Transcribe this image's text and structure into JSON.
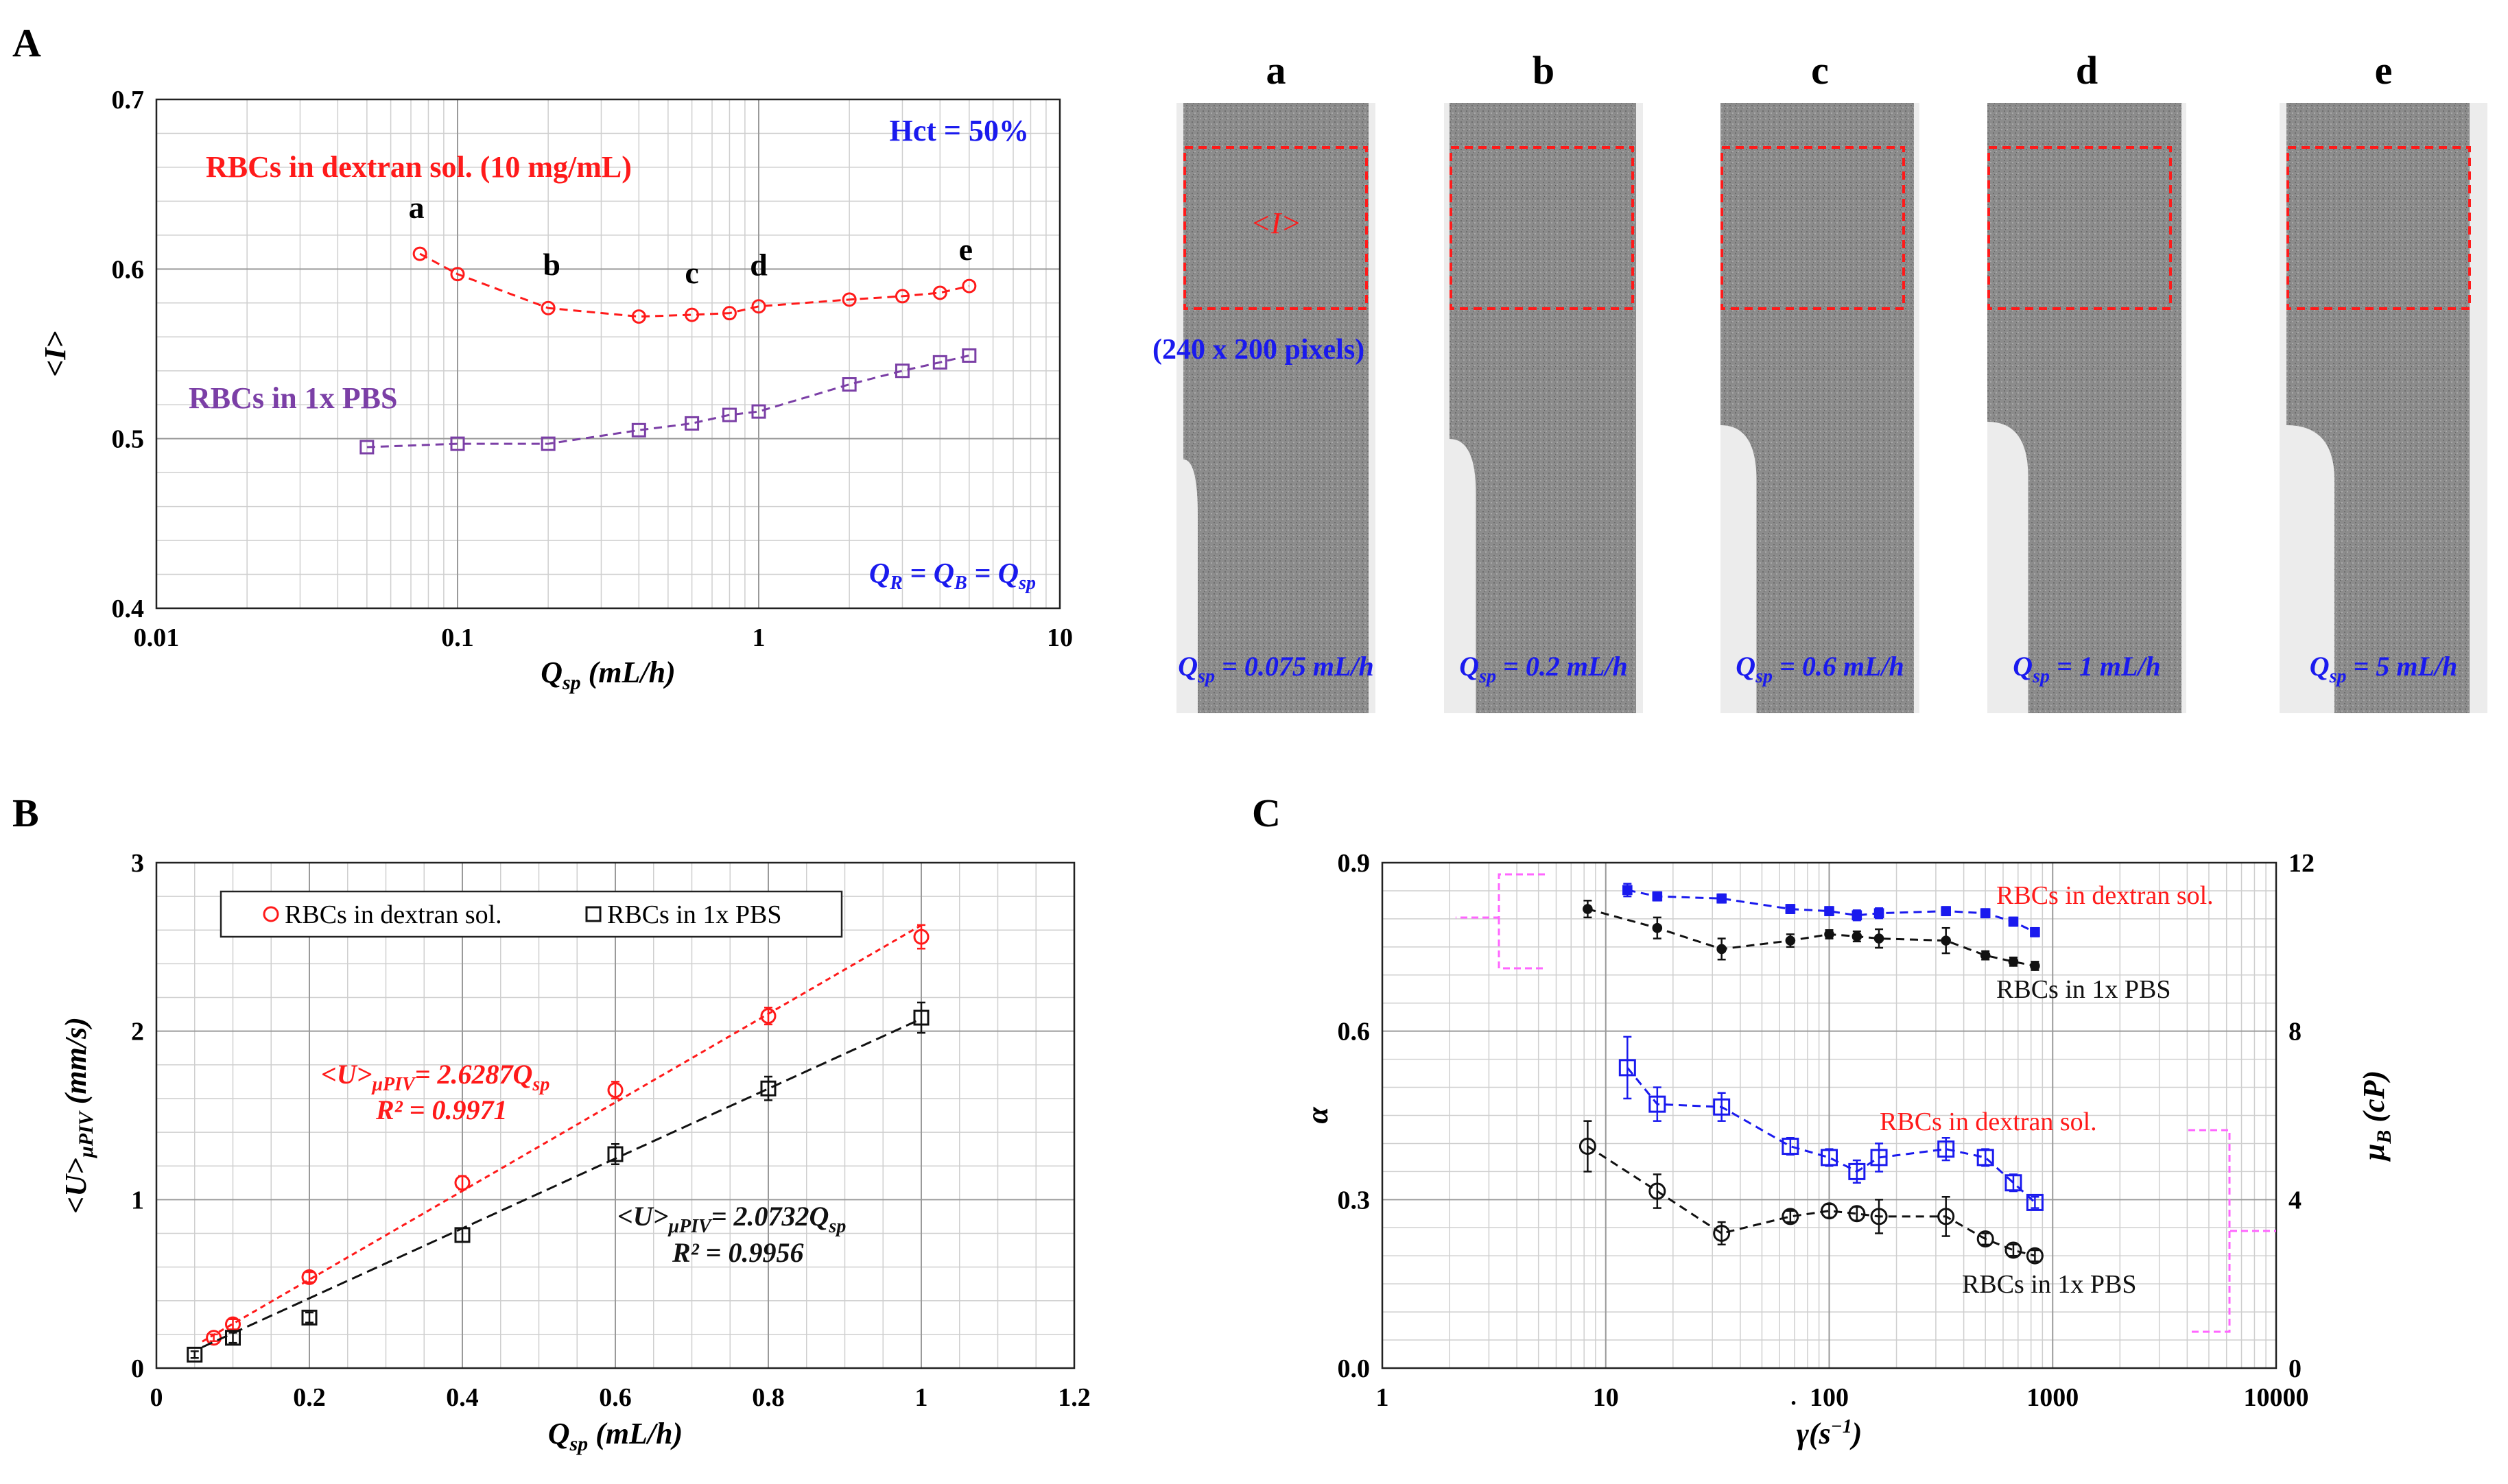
{
  "colors": {
    "red": "#ff1a1a",
    "purple": "#7b3fa6",
    "blue": "#1a1aee",
    "black": "#111111",
    "magenta": "#ff66ff",
    "grid": "#cfcfcf",
    "gridDark": "#9a9a9a"
  },
  "panels": {
    "A": "A",
    "B": "B",
    "C": "C"
  },
  "images": {
    "labels": [
      "a",
      "b",
      "c",
      "d",
      "e"
    ],
    "captions": [
      {
        "q": "Q",
        "sub": "sp",
        "rest": " = 0.075 mL/h"
      },
      {
        "q": "Q",
        "sub": "sp",
        "rest": " = 0.2 mL/h"
      },
      {
        "q": "Q",
        "sub": "sp",
        "rest": " = 0.6 mL/h"
      },
      {
        "q": "Q",
        "sub": "sp",
        "rest": " = 1 mL/h"
      },
      {
        "q": "Q",
        "sub": "sp",
        "rest": " = 5 mL/h"
      }
    ],
    "roi_label": "<I>",
    "roi_size": "(240 x 200 pixels)"
  },
  "chart_data": [
    {
      "id": "A",
      "type": "scatter",
      "xscale": "log",
      "xlim": [
        0.01,
        10
      ],
      "ylim": [
        0.4,
        0.7
      ],
      "xticks": [
        "0.01",
        "0.1",
        "1",
        "10"
      ],
      "yticks": [
        "0.4",
        "0.5",
        "0.6",
        "0.7"
      ],
      "xlabel": {
        "q": "Q",
        "sub": "sp",
        "rest": " (mL/h)"
      },
      "ylabel": "<I>",
      "annotations": {
        "hct": "Hct = 50%",
        "qeq": {
          "a": "Q",
          "as": "R",
          "b": " = Q",
          "bs": "B",
          "c": " = Q",
          "cs": "sp"
        },
        "dextran": "RBCs in dextran sol. (10 mg/mL)",
        "pbs": "RBCs in 1x PBS",
        "points": [
          "a",
          "b",
          "c",
          "d",
          "e"
        ]
      },
      "series": [
        {
          "name": "RBCs in dextran sol. (10 mg/mL)",
          "marker": "circle",
          "x": [
            0.075,
            0.1,
            0.2,
            0.4,
            0.6,
            0.8,
            1,
            2,
            3,
            4,
            5
          ],
          "y": [
            0.609,
            0.597,
            0.577,
            0.572,
            0.573,
            0.574,
            0.578,
            0.582,
            0.584,
            0.586,
            0.59
          ]
        },
        {
          "name": "RBCs in 1x PBS",
          "marker": "square",
          "x": [
            0.05,
            0.1,
            0.2,
            0.4,
            0.6,
            0.8,
            1,
            2,
            3,
            4,
            5
          ],
          "y": [
            0.495,
            0.497,
            0.497,
            0.505,
            0.509,
            0.514,
            0.516,
            0.532,
            0.54,
            0.545,
            0.549
          ]
        }
      ]
    },
    {
      "id": "B",
      "type": "scatter",
      "xlim": [
        0,
        1.2
      ],
      "ylim": [
        0,
        3
      ],
      "xticks": [
        "0",
        "0.2",
        "0.4",
        "0.6",
        "0.8",
        "1",
        "1.2"
      ],
      "yticks": [
        "0",
        "1",
        "2",
        "3"
      ],
      "xlabel": {
        "q": "Q",
        "sub": "sp",
        "rest": " (mL/h)"
      },
      "ylabel": {
        "main": "<U>",
        "sub": "μPIV",
        "rest": " (mm/s)"
      },
      "legend": [
        "RBCs in dextran sol.",
        "RBCs in 1x PBS"
      ],
      "fits": [
        {
          "eq": "<U>",
          "sub": "μPIV",
          "rhs": "= 2.6287Q",
          "rsub": "sp",
          "r2": "R² = 0.9971",
          "slope": 2.6287
        },
        {
          "eq": "<U>",
          "sub": "μPIV",
          "rhs": "= 2.0732Q",
          "rsub": "sp",
          "r2": "R² = 0.9956",
          "slope": 2.0732
        }
      ],
      "series": [
        {
          "name": "RBCs in dextran sol.",
          "marker": "circle",
          "x": [
            0.075,
            0.1,
            0.2,
            0.4,
            0.6,
            0.8,
            1.0
          ],
          "y": [
            0.18,
            0.26,
            0.54,
            1.1,
            1.65,
            2.09,
            2.56
          ],
          "err": [
            0.02,
            0.03,
            0.03,
            0.04,
            0.05,
            0.05,
            0.07
          ]
        },
        {
          "name": "RBCs in 1x PBS",
          "marker": "square",
          "x": [
            0.05,
            0.1,
            0.2,
            0.4,
            0.6,
            0.8,
            1.0
          ],
          "y": [
            0.08,
            0.18,
            0.3,
            0.79,
            1.27,
            1.66,
            2.08
          ],
          "err": [
            0.02,
            0.03,
            0.03,
            0.04,
            0.06,
            0.07,
            0.09
          ]
        }
      ]
    },
    {
      "id": "C",
      "type": "scatter",
      "xscale": "log",
      "xlim": [
        1,
        10000
      ],
      "ylim": [
        0,
        0.9
      ],
      "y2lim": [
        0,
        12
      ],
      "xticks": [
        "1",
        "10",
        "100",
        "1000",
        "10000"
      ],
      "yticks": [
        "0.0",
        "0.3",
        "0.6",
        "0.9"
      ],
      "y2ticks": [
        "0",
        "4",
        "8",
        "12"
      ],
      "xlabel": {
        "main": "γ",
        "rest": "(s",
        "sup": "−1",
        "end": ")"
      },
      "ylabel": "α",
      "y2label": {
        "main": "μ",
        "sub": "B",
        "rest": " (cP)"
      },
      "annotations": {
        "top_dextran": "RBCs in dextran sol.",
        "top_pbs": "RBCs in 1x PBS",
        "bot_dextran": "RBCs in dextran sol.",
        "bot_pbs": "RBCs in 1x PBS"
      },
      "series": [
        {
          "name": "RBCs in dextran sol. (μB)",
          "axis": "right",
          "marker": "filled-square",
          "x": [
            12.5,
            17,
            33,
            67,
            100,
            133,
            167,
            333,
            500,
            667,
            833
          ],
          "y": [
            11.35,
            11.2,
            11.15,
            10.9,
            10.85,
            10.75,
            10.8,
            10.85,
            10.8,
            10.6,
            10.35
          ],
          "err": [
            0.15,
            0.1,
            0.1,
            0.1,
            0.1,
            0.12,
            0.12,
            0.1,
            0.1,
            0.1,
            0.1
          ]
        },
        {
          "name": "RBCs in 1x PBS (μB)",
          "axis": "right",
          "marker": "filled-circle",
          "x": [
            8.3,
            17,
            33,
            67,
            100,
            133,
            167,
            333,
            500,
            667,
            833
          ],
          "y": [
            10.9,
            10.45,
            9.95,
            10.15,
            10.3,
            10.25,
            10.2,
            10.15,
            9.8,
            9.65,
            9.55
          ],
          "err": [
            0.2,
            0.25,
            0.25,
            0.15,
            0.1,
            0.12,
            0.22,
            0.3,
            0.1,
            0.1,
            0.1
          ]
        },
        {
          "name": "RBCs in dextran sol. (α)",
          "axis": "left",
          "marker": "square",
          "x": [
            12.5,
            17,
            33,
            67,
            100,
            133,
            167,
            333,
            500,
            667,
            833
          ],
          "y": [
            0.535,
            0.47,
            0.465,
            0.395,
            0.375,
            0.35,
            0.375,
            0.39,
            0.375,
            0.33,
            0.295
          ],
          "err": [
            0.055,
            0.03,
            0.025,
            0.015,
            0.015,
            0.02,
            0.025,
            0.02,
            0.015,
            0.015,
            0.01
          ]
        },
        {
          "name": "RBCs in 1x PBS (α)",
          "axis": "left",
          "marker": "circle",
          "x": [
            8.3,
            17,
            33,
            67,
            100,
            133,
            167,
            333,
            500,
            667,
            833
          ],
          "y": [
            0.395,
            0.315,
            0.24,
            0.27,
            0.28,
            0.275,
            0.27,
            0.27,
            0.23,
            0.21,
            0.2
          ]
        },
        {
          "name": "RBCs in 1x PBS (α) err",
          "axis": "left",
          "marker": "none",
          "x": [
            8.3,
            17,
            33,
            67,
            100,
            133,
            167,
            333,
            500,
            667,
            833
          ],
          "y": [
            0.045,
            0.03,
            0.02,
            0.01,
            0.012,
            0.012,
            0.03,
            0.035,
            0.01,
            0.01,
            0.01
          ]
        }
      ]
    }
  ]
}
